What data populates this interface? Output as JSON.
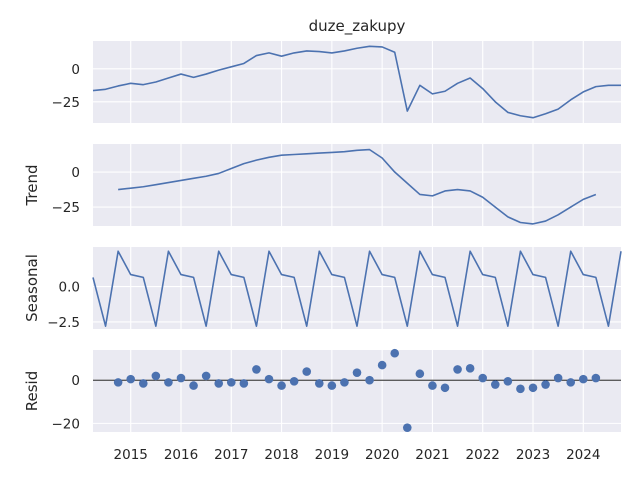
{
  "chart_data": {
    "type": "line",
    "title": "duze_zakupy",
    "x_axis": {
      "start": 2014.25,
      "end": 2024.75,
      "ticks": [
        "2015",
        "2016",
        "2017",
        "2018",
        "2019",
        "2020",
        "2021",
        "2022",
        "2023",
        "2024"
      ]
    },
    "colors": {
      "line": "#4c72b0",
      "panel_bg": "#eaeaf2",
      "grid": "#ffffff",
      "zero_line": "#000000"
    },
    "panels": [
      {
        "name": "observed",
        "ylabel": "",
        "type": "line",
        "ylim": [
          -41,
          21
        ],
        "yticks": [
          "0",
          "−25"
        ],
        "ytick_values": [
          0,
          -25
        ],
        "points": [
          [
            2014.25,
            -16.5
          ],
          [
            2014.5,
            -15.5
          ],
          [
            2014.75,
            -13
          ],
          [
            2015.0,
            -11
          ],
          [
            2015.25,
            -12
          ],
          [
            2015.5,
            -10
          ],
          [
            2015.75,
            -7
          ],
          [
            2016.0,
            -4
          ],
          [
            2016.25,
            -6.5
          ],
          [
            2016.5,
            -4
          ],
          [
            2016.75,
            -1
          ],
          [
            2017.0,
            1.5
          ],
          [
            2017.25,
            4
          ],
          [
            2017.5,
            10
          ],
          [
            2017.75,
            12
          ],
          [
            2018.0,
            9.5
          ],
          [
            2018.25,
            12
          ],
          [
            2018.5,
            13.5
          ],
          [
            2018.75,
            13
          ],
          [
            2019.0,
            12
          ],
          [
            2019.25,
            13.5
          ],
          [
            2019.5,
            15.5
          ],
          [
            2019.75,
            17
          ],
          [
            2020.0,
            16.5
          ],
          [
            2020.25,
            12.5
          ],
          [
            2020.5,
            -32
          ],
          [
            2020.75,
            -12.5
          ],
          [
            2021.0,
            -19
          ],
          [
            2021.25,
            -17
          ],
          [
            2021.5,
            -11
          ],
          [
            2021.75,
            -7
          ],
          [
            2022.0,
            -15
          ],
          [
            2022.25,
            -25
          ],
          [
            2022.5,
            -33
          ],
          [
            2022.75,
            -35.5
          ],
          [
            2023.0,
            -37
          ],
          [
            2023.25,
            -34
          ],
          [
            2023.5,
            -30.5
          ],
          [
            2023.75,
            -23.5
          ],
          [
            2024.0,
            -17.5
          ],
          [
            2024.25,
            -13.5
          ],
          [
            2024.5,
            -12.5
          ],
          [
            2024.75,
            -12.5
          ]
        ]
      },
      {
        "name": "trend",
        "ylabel": "Trend",
        "type": "line",
        "ylim": [
          -38.5,
          20
        ],
        "yticks": [
          "0",
          "−25"
        ],
        "ytick_values": [
          0,
          -25
        ],
        "points": [
          [
            2014.75,
            -12.5
          ],
          [
            2015.0,
            -11.5
          ],
          [
            2015.25,
            -10.5
          ],
          [
            2015.5,
            -9
          ],
          [
            2015.75,
            -7.5
          ],
          [
            2016.0,
            -6
          ],
          [
            2016.25,
            -4.5
          ],
          [
            2016.5,
            -3
          ],
          [
            2016.75,
            -1
          ],
          [
            2017.0,
            2.5
          ],
          [
            2017.25,
            6
          ],
          [
            2017.5,
            8.5
          ],
          [
            2017.75,
            10.5
          ],
          [
            2018.0,
            12
          ],
          [
            2018.25,
            12.5
          ],
          [
            2018.5,
            13
          ],
          [
            2018.75,
            13.5
          ],
          [
            2019.0,
            14
          ],
          [
            2019.25,
            14.5
          ],
          [
            2019.5,
            15.5
          ],
          [
            2019.75,
            16
          ],
          [
            2020.0,
            10
          ],
          [
            2020.25,
            0
          ],
          [
            2020.5,
            -8
          ],
          [
            2020.75,
            -16
          ],
          [
            2021.0,
            -17
          ],
          [
            2021.25,
            -13.5
          ],
          [
            2021.5,
            -12.5
          ],
          [
            2021.75,
            -13.5
          ],
          [
            2022.0,
            -18
          ],
          [
            2022.25,
            -25
          ],
          [
            2022.5,
            -32
          ],
          [
            2022.75,
            -36
          ],
          [
            2023.0,
            -37
          ],
          [
            2023.25,
            -35
          ],
          [
            2023.5,
            -30.5
          ],
          [
            2023.75,
            -25
          ],
          [
            2024.0,
            -19.5
          ],
          [
            2024.25,
            -16
          ]
        ]
      },
      {
        "name": "seasonal",
        "ylabel": "Seasonal",
        "type": "line",
        "ylim": [
          -3.0,
          2.8
        ],
        "yticks": [
          "0.0",
          "−2.5"
        ],
        "ytick_values": [
          0,
          -2.5
        ],
        "period_start": 2014.25,
        "period_pattern": [
          0.65,
          -2.8,
          2.5,
          0.85,
          0.65,
          -2.8,
          2.5,
          0.85
        ],
        "points": [
          [
            2014.25,
            0.65
          ],
          [
            2014.5,
            -2.8
          ],
          [
            2014.75,
            2.5
          ],
          [
            2015.0,
            0.85
          ],
          [
            2015.25,
            0.65
          ],
          [
            2015.5,
            -2.8
          ],
          [
            2015.75,
            2.5
          ],
          [
            2016.0,
            0.85
          ],
          [
            2016.25,
            0.65
          ],
          [
            2016.5,
            -2.8
          ],
          [
            2016.75,
            2.5
          ],
          [
            2017.0,
            0.85
          ],
          [
            2017.25,
            0.65
          ],
          [
            2017.5,
            -2.8
          ],
          [
            2017.75,
            2.5
          ],
          [
            2018.0,
            0.85
          ],
          [
            2018.25,
            0.65
          ],
          [
            2018.5,
            -2.8
          ],
          [
            2018.75,
            2.5
          ],
          [
            2019.0,
            0.85
          ],
          [
            2019.25,
            0.65
          ],
          [
            2019.5,
            -2.8
          ],
          [
            2019.75,
            2.5
          ],
          [
            2020.0,
            0.85
          ],
          [
            2020.25,
            0.65
          ],
          [
            2020.5,
            -2.8
          ],
          [
            2020.75,
            2.5
          ],
          [
            2021.0,
            0.85
          ],
          [
            2021.25,
            0.65
          ],
          [
            2021.5,
            -2.8
          ],
          [
            2021.75,
            2.5
          ],
          [
            2022.0,
            0.85
          ],
          [
            2022.25,
            0.65
          ],
          [
            2022.5,
            -2.8
          ],
          [
            2022.75,
            2.5
          ],
          [
            2023.0,
            0.85
          ],
          [
            2023.25,
            0.65
          ],
          [
            2023.5,
            -2.8
          ],
          [
            2023.75,
            2.5
          ],
          [
            2024.0,
            0.85
          ],
          [
            2024.25,
            0.65
          ],
          [
            2024.5,
            -2.8
          ],
          [
            2024.75,
            2.5
          ]
        ]
      },
      {
        "name": "resid",
        "ylabel": "Resid",
        "type": "scatter",
        "ylim": [
          -24,
          14
        ],
        "yticks": [
          "0",
          "−20"
        ],
        "ytick_values": [
          0,
          -20
        ],
        "zero_line": true,
        "points": [
          [
            2014.75,
            -1
          ],
          [
            2015.0,
            0.5
          ],
          [
            2015.25,
            -1.5
          ],
          [
            2015.5,
            2
          ],
          [
            2015.75,
            -1
          ],
          [
            2016.0,
            1
          ],
          [
            2016.25,
            -2.5
          ],
          [
            2016.5,
            2
          ],
          [
            2016.75,
            -1.5
          ],
          [
            2017.0,
            -1
          ],
          [
            2017.25,
            -1.5
          ],
          [
            2017.5,
            5
          ],
          [
            2017.75,
            0.5
          ],
          [
            2018.0,
            -2.5
          ],
          [
            2018.25,
            -0.5
          ],
          [
            2018.5,
            4
          ],
          [
            2018.75,
            -1.5
          ],
          [
            2019.0,
            -2.5
          ],
          [
            2019.25,
            -1
          ],
          [
            2019.5,
            3.5
          ],
          [
            2019.75,
            0
          ],
          [
            2020.0,
            7
          ],
          [
            2020.25,
            12.5
          ],
          [
            2020.5,
            -22
          ],
          [
            2020.75,
            3
          ],
          [
            2021.0,
            -2.5
          ],
          [
            2021.25,
            -3.5
          ],
          [
            2021.5,
            5
          ],
          [
            2021.75,
            5.5
          ],
          [
            2022.0,
            1
          ],
          [
            2022.25,
            -2
          ],
          [
            2022.5,
            -0.5
          ],
          [
            2022.75,
            -4
          ],
          [
            2023.0,
            -3.5
          ],
          [
            2023.25,
            -2
          ],
          [
            2023.5,
            1
          ],
          [
            2023.75,
            -1
          ],
          [
            2024.0,
            0.5
          ],
          [
            2024.25,
            1
          ]
        ]
      }
    ]
  }
}
